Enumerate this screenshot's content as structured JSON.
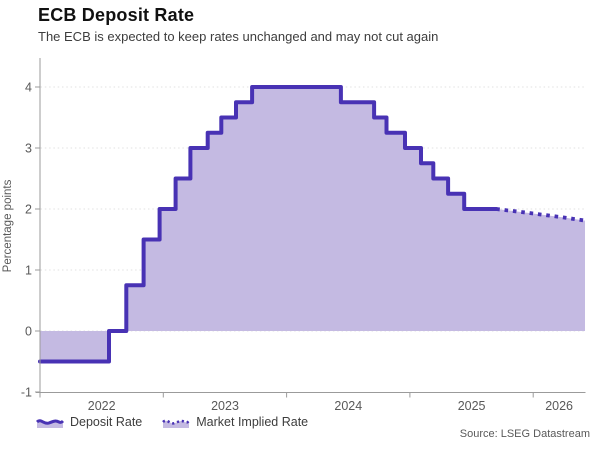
{
  "header": {
    "title": "ECB Deposit Rate",
    "subtitle": "The ECB is expected to keep rates unchanged and may not cut again"
  },
  "legend": {
    "items": [
      {
        "label": "Deposit Rate",
        "style": "solid"
      },
      {
        "label": "Market Implied Rate",
        "style": "dotted"
      }
    ]
  },
  "footer": {
    "source": "Source: LSEG Datastream"
  },
  "colors": {
    "line": "#4832b4",
    "fill": "#c4bae2",
    "grid": "#e2e2e2",
    "axis": "#9b9b9b",
    "tick_text": "#595959",
    "title_text": "#111111",
    "subtitle_text": "#3d3d3d",
    "legend_text": "#3d3d3d",
    "source_text": "#595959"
  },
  "chart_data": {
    "type": "area",
    "title": "ECB Deposit Rate",
    "subtitle": "The ECB is expected to keep rates unchanged and may not cut again",
    "xlabel": "",
    "ylabel": "Percentage points",
    "xlim": [
      2022.0,
      2026.42
    ],
    "ylim": [
      -1,
      4
    ],
    "x_ticks": [
      2022,
      2023,
      2024,
      2025,
      2026
    ],
    "y_ticks": [
      -1,
      0,
      1,
      2,
      3,
      4
    ],
    "grid": "horizontal-dotted",
    "legend_position": "bottom-left",
    "baseline": 0,
    "units": "percentage points",
    "series": [
      {
        "name": "Deposit Rate",
        "style": "step-solid",
        "points": [
          [
            2022.0,
            -0.5
          ],
          [
            2022.56,
            0.0
          ],
          [
            2022.7,
            0.75
          ],
          [
            2022.84,
            1.5
          ],
          [
            2022.97,
            2.0
          ],
          [
            2023.1,
            2.5
          ],
          [
            2023.22,
            3.0
          ],
          [
            2023.36,
            3.25
          ],
          [
            2023.47,
            3.5
          ],
          [
            2023.59,
            3.75
          ],
          [
            2023.72,
            4.0
          ],
          [
            2024.44,
            3.75
          ],
          [
            2024.71,
            3.5
          ],
          [
            2024.81,
            3.25
          ],
          [
            2024.96,
            3.0
          ],
          [
            2025.09,
            2.75
          ],
          [
            2025.19,
            2.5
          ],
          [
            2025.31,
            2.25
          ],
          [
            2025.44,
            2.0
          ],
          [
            2025.7,
            2.0
          ]
        ]
      },
      {
        "name": "Market Implied Rate",
        "style": "dotted",
        "points": [
          [
            2025.7,
            2.0
          ],
          [
            2025.82,
            1.97
          ],
          [
            2025.95,
            1.94
          ],
          [
            2026.1,
            1.9
          ],
          [
            2026.25,
            1.86
          ],
          [
            2026.42,
            1.81
          ]
        ]
      }
    ]
  }
}
